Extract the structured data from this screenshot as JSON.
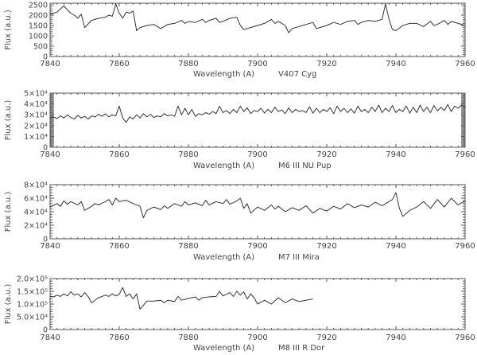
{
  "chart_data": [
    {
      "type": "line",
      "title": "V407 Cyg",
      "xlabel": "Wavelength  (A)",
      "ylabel": "Flux  (a.u.)",
      "xlim": [
        7840,
        7960
      ],
      "ylim": [
        0,
        2580
      ],
      "xticks": [
        "7840",
        "7860",
        "7880",
        "7900",
        "7920",
        "7940",
        "7960"
      ],
      "yticks": [
        {
          "v": 0,
          "label": "0"
        },
        {
          "v": 500,
          "label": "500"
        },
        {
          "v": 1000,
          "label": "1000"
        },
        {
          "v": 1500,
          "label": "1500"
        },
        {
          "v": 2000,
          "label": "2000"
        },
        {
          "v": 2500,
          "label": "2500"
        }
      ],
      "shaded": false,
      "x": [
        7840,
        7841,
        7842,
        7843,
        7844,
        7845,
        7846,
        7847,
        7848,
        7849,
        7850,
        7852,
        7854,
        7856,
        7857,
        7858,
        7859,
        7860,
        7861,
        7862,
        7863,
        7864,
        7865,
        7866,
        7868,
        7870,
        7872,
        7874,
        7876,
        7878,
        7879,
        7880,
        7882,
        7884,
        7885,
        7886,
        7888,
        7889,
        7890,
        7892,
        7894,
        7895,
        7896,
        7898,
        7900,
        7902,
        7904,
        7905,
        7906,
        7908,
        7909,
        7910,
        7912,
        7914,
        7916,
        7917,
        7918,
        7920,
        7922,
        7924,
        7926,
        7928,
        7929,
        7930,
        7932,
        7934,
        7936,
        7937,
        7938,
        7939,
        7940,
        7942,
        7944,
        7946,
        7948,
        7950,
        7951,
        7952,
        7954,
        7955,
        7956,
        7958,
        7960
      ],
      "y": [
        2050,
        2100,
        2150,
        2300,
        2450,
        2250,
        2100,
        2000,
        1850,
        2050,
        1400,
        1750,
        1850,
        1900,
        2000,
        1950,
        2550,
        2100,
        1850,
        2150,
        2100,
        2200,
        1250,
        1400,
        1500,
        1550,
        1350,
        1550,
        1600,
        1750,
        1600,
        1700,
        1650,
        1800,
        1650,
        1750,
        1850,
        1650,
        1700,
        1850,
        1900,
        1500,
        1300,
        1400,
        1500,
        1600,
        1800,
        1600,
        1700,
        1500,
        1150,
        1350,
        1450,
        1550,
        1650,
        1350,
        1400,
        1500,
        1650,
        1550,
        1700,
        1750,
        1550,
        1650,
        1750,
        1700,
        1800,
        2550,
        1800,
        1300,
        1250,
        1500,
        1600,
        1600,
        1450,
        1700,
        1500,
        1550,
        1750,
        1550,
        1700,
        1600,
        1500
      ]
    },
    {
      "type": "line",
      "title": "M6  III    NU  Pup",
      "xlabel": "Wavelength  (A)",
      "ylabel": "Flux  (a.u.)",
      "xlim": [
        7840,
        7960
      ],
      "ylim": [
        0,
        50000
      ],
      "xticks": [
        "7840",
        "7860",
        "7880",
        "7900",
        "7920",
        "7940",
        "7960"
      ],
      "yticks": [
        {
          "v": 0,
          "label": "0"
        },
        {
          "v": 10000,
          "label": "1×10⁴"
        },
        {
          "v": 20000,
          "label": "2×10⁴"
        },
        {
          "v": 30000,
          "label": "3×10⁴"
        },
        {
          "v": 40000,
          "label": "4×10⁴"
        },
        {
          "v": 50000,
          "label": "5×10⁴"
        }
      ],
      "shaded": true,
      "x": [
        7840,
        7841,
        7842,
        7843,
        7844,
        7845,
        7846,
        7847,
        7848,
        7849,
        7850,
        7851,
        7852,
        7853,
        7854,
        7855,
        7856,
        7857,
        7858,
        7859,
        7860,
        7861,
        7862,
        7863,
        7864,
        7865,
        7866,
        7867,
        7868,
        7869,
        7870,
        7871,
        7872,
        7873,
        7874,
        7875,
        7876,
        7877,
        7878,
        7879,
        7880,
        7881,
        7882,
        7883,
        7884,
        7885,
        7886,
        7887,
        7888,
        7889,
        7890,
        7891,
        7892,
        7893,
        7894,
        7895,
        7896,
        7897,
        7898,
        7899,
        7900,
        7901,
        7902,
        7903,
        7904,
        7905,
        7906,
        7907,
        7908,
        7909,
        7910,
        7911,
        7912,
        7913,
        7914,
        7915,
        7916,
        7917,
        7918,
        7919,
        7920,
        7921,
        7922,
        7923,
        7924,
        7925,
        7926,
        7927,
        7928,
        7929,
        7930,
        7931,
        7932,
        7933,
        7934,
        7935,
        7936,
        7937,
        7938,
        7939,
        7940,
        7941,
        7942,
        7943,
        7944,
        7945,
        7946,
        7947,
        7948,
        7949,
        7950,
        7951,
        7952,
        7953,
        7954,
        7955,
        7956,
        7957,
        7958,
        7959,
        7960
      ],
      "y": [
        27000,
        28000,
        26500,
        29000,
        27000,
        30000,
        27500,
        26000,
        29500,
        27000,
        28500,
        26000,
        29000,
        28000,
        30500,
        28500,
        31000,
        28000,
        30000,
        29000,
        38000,
        27000,
        23000,
        28000,
        26000,
        30000,
        27000,
        31000,
        28000,
        30500,
        27500,
        29000,
        28000,
        31000,
        29000,
        30000,
        28500,
        38000,
        30000,
        36000,
        30000,
        35000,
        28500,
        31000,
        30000,
        32000,
        30500,
        33000,
        31000,
        38000,
        32000,
        34000,
        31000,
        35000,
        32000,
        38000,
        33000,
        36500,
        31000,
        34000,
        33000,
        36000,
        31500,
        35000,
        32000,
        37000,
        33000,
        34500,
        31000,
        36500,
        32000,
        35000,
        33000,
        34000,
        32000,
        37500,
        31500,
        36000,
        32000,
        35000,
        33000,
        36500,
        31000,
        38000,
        33000,
        36000,
        32000,
        35500,
        31500,
        38000,
        33000,
        35000,
        32000,
        37000,
        33000,
        39000,
        32000,
        36000,
        33000,
        38500,
        32000,
        35000,
        33000,
        38000,
        31500,
        37000,
        32000,
        39000,
        33000,
        37000,
        32000,
        38500,
        33500,
        37000,
        34000,
        39500,
        33000,
        38000,
        36000,
        39000,
        37000
      ]
    },
    {
      "type": "line",
      "title": "M7  III    Mira",
      "xlabel": "Wavelength  (A)",
      "ylabel": "Flux  (a.u.)",
      "xlim": [
        7840,
        7960
      ],
      "ylim": [
        0,
        80000
      ],
      "xticks": [
        "7840",
        "7860",
        "7880",
        "7900",
        "7920",
        "7940",
        "7960"
      ],
      "yticks": [
        {
          "v": 0,
          "label": "0"
        },
        {
          "v": 20000,
          "label": "2×10⁴"
        },
        {
          "v": 40000,
          "label": "4×10⁴"
        },
        {
          "v": 60000,
          "label": "6×10⁴"
        },
        {
          "v": 80000,
          "label": "8×10⁴"
        }
      ],
      "shaded": false,
      "x": [
        7840,
        7842,
        7843,
        7844,
        7845,
        7846,
        7848,
        7849,
        7850,
        7852,
        7853,
        7854,
        7856,
        7857,
        7858,
        7859,
        7860,
        7862,
        7864,
        7866,
        7867,
        7868,
        7870,
        7872,
        7873,
        7874,
        7876,
        7878,
        7879,
        7880,
        7882,
        7884,
        7885,
        7886,
        7888,
        7890,
        7891,
        7892,
        7894,
        7895,
        7896,
        7897,
        7898,
        7900,
        7902,
        7904,
        7905,
        7906,
        7908,
        7910,
        7912,
        7914,
        7916,
        7918,
        7920,
        7922,
        7924,
        7926,
        7928,
        7930,
        7932,
        7934,
        7936,
        7938,
        7939,
        7940,
        7941,
        7942,
        7944,
        7946,
        7948,
        7950,
        7952,
        7954,
        7956,
        7958,
        7960
      ],
      "y": [
        47000,
        52000,
        48000,
        56000,
        51000,
        55000,
        50000,
        55000,
        42000,
        48000,
        52000,
        50000,
        55000,
        58000,
        50000,
        60000,
        55000,
        57000,
        52000,
        48000,
        31000,
        42000,
        47000,
        43000,
        49000,
        45000,
        52000,
        48000,
        55000,
        50000,
        53000,
        49000,
        57000,
        50000,
        55000,
        52000,
        58000,
        51000,
        56000,
        60000,
        45000,
        52000,
        38000,
        47000,
        42000,
        50000,
        44000,
        48000,
        40000,
        46000,
        42000,
        49000,
        38000,
        45000,
        41000,
        48000,
        44000,
        52000,
        46000,
        50000,
        47000,
        54000,
        49000,
        55000,
        58000,
        68000,
        45000,
        33000,
        42000,
        47000,
        55000,
        45000,
        58000,
        47000,
        60000,
        50000,
        56000
      ]
    },
    {
      "type": "line",
      "title": "M8  III    R  Dor",
      "xlabel": "Wavelength  (A)",
      "ylabel": "Flux  (a.u.)",
      "xlim": [
        7840,
        7960
      ],
      "ylim": [
        0,
        200000
      ],
      "xticks": [
        "7840",
        "7860",
        "7880",
        "7900",
        "7920",
        "7940",
        "7960"
      ],
      "yticks": [
        {
          "v": 0,
          "label": "0"
        },
        {
          "v": 50000,
          "label": "5.0×10⁴"
        },
        {
          "v": 100000,
          "label": "1.0×10⁵"
        },
        {
          "v": 150000,
          "label": "1.5×10⁵"
        },
        {
          "v": 200000,
          "label": "2.0×10⁵"
        }
      ],
      "shaded": false,
      "x": [
        7840,
        7841,
        7842,
        7843,
        7844,
        7845,
        7846,
        7847,
        7848,
        7849,
        7850,
        7851,
        7852,
        7854,
        7856,
        7857,
        7858,
        7859,
        7860,
        7861,
        7862,
        7863,
        7864,
        7865,
        7866,
        7867,
        7868,
        7870,
        7872,
        7873,
        7874,
        7876,
        7877,
        7878,
        7880,
        7882,
        7883,
        7884,
        7886,
        7888,
        7889,
        7890,
        7892,
        7893,
        7894,
        7895,
        7896,
        7897,
        7898,
        7899,
        7900,
        7902,
        7904,
        7906,
        7908,
        7910,
        7912,
        7914,
        7916
      ],
      "y": [
        130000,
        128000,
        135000,
        130000,
        140000,
        132000,
        148000,
        135000,
        140000,
        128000,
        145000,
        130000,
        105000,
        125000,
        135000,
        130000,
        140000,
        132000,
        138000,
        165000,
        130000,
        140000,
        120000,
        140000,
        80000,
        95000,
        112000,
        112000,
        115000,
        105000,
        115000,
        110000,
        130000,
        115000,
        122000,
        128000,
        115000,
        125000,
        128000,
        130000,
        150000,
        132000,
        145000,
        130000,
        150000,
        135000,
        148000,
        120000,
        140000,
        125000,
        100000,
        115000,
        100000,
        125000,
        105000,
        120000,
        110000,
        115000,
        120000
      ]
    }
  ]
}
